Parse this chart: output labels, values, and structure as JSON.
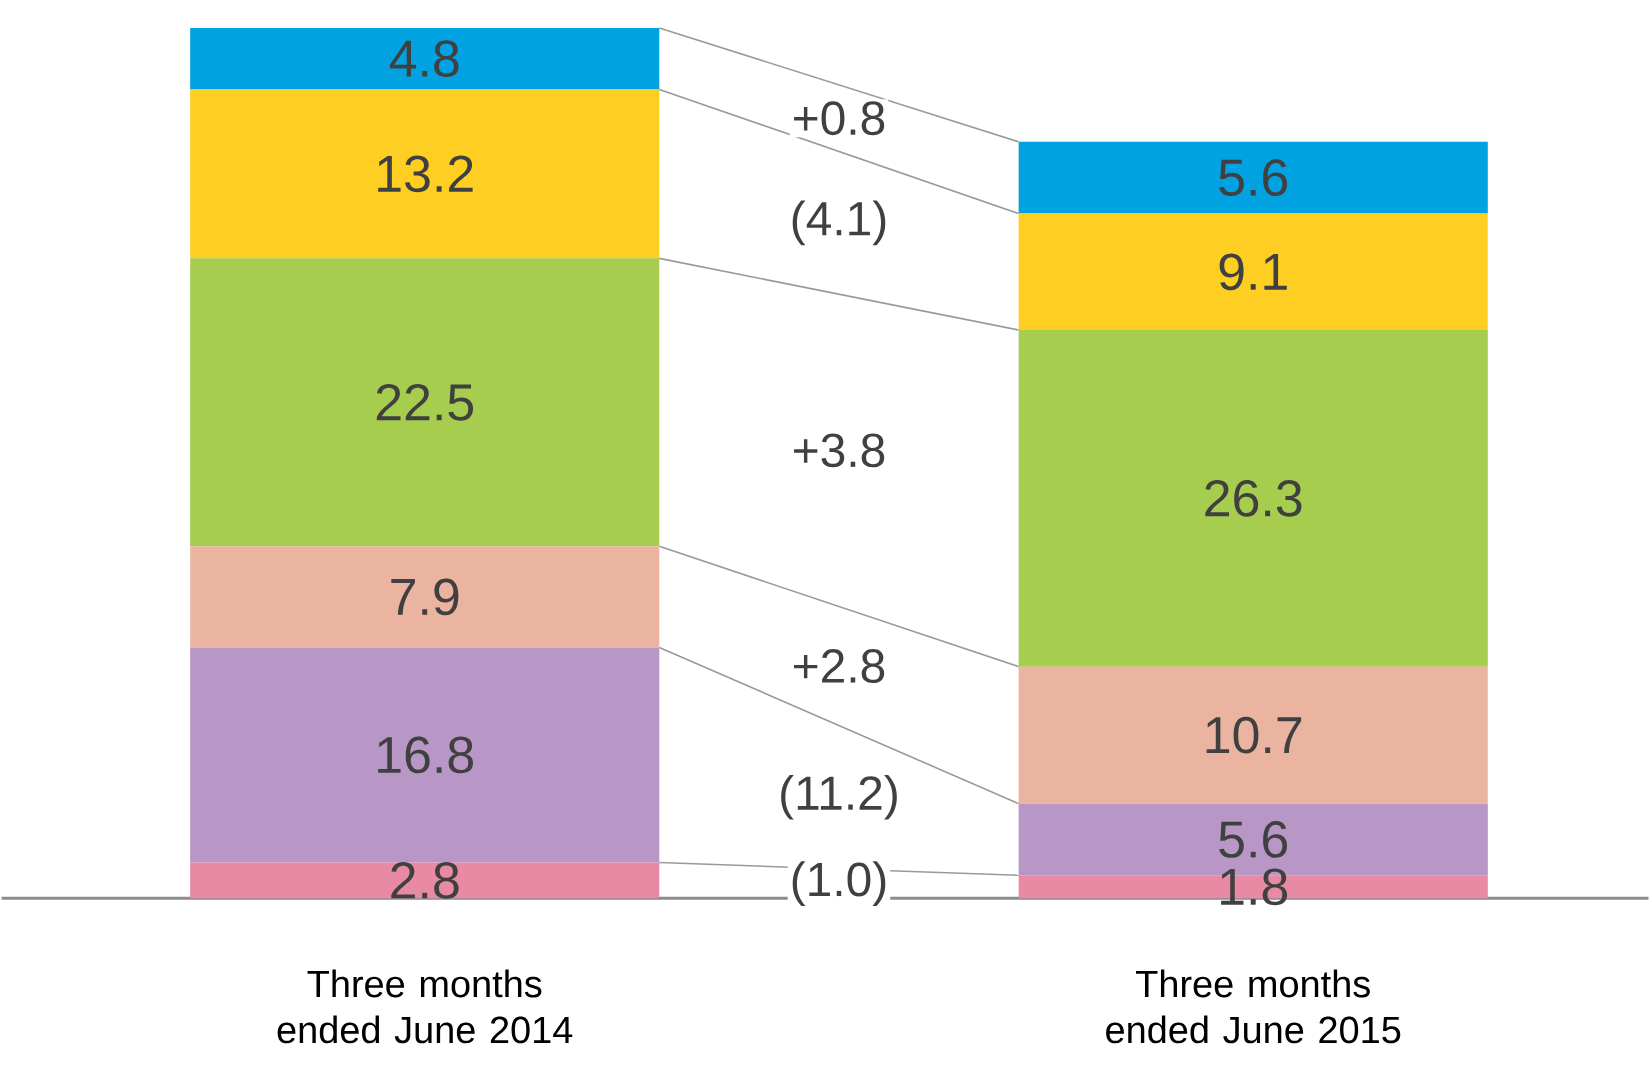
{
  "chart_data": {
    "type": "bar",
    "stacked": true,
    "data_labels": true,
    "categories": [
      "Three months ended June 2014",
      "Three months ended June 2015"
    ],
    "series": [
      {
        "color": "#e98aa4",
        "values": [
          2.8,
          1.8
        ]
      },
      {
        "color": "#b896c6",
        "values": [
          16.8,
          5.6
        ]
      },
      {
        "color": "#ebb4a0",
        "values": [
          7.9,
          10.7
        ]
      },
      {
        "color": "#a6cd4e",
        "values": [
          22.5,
          26.3
        ]
      },
      {
        "color": "#fecf22",
        "values": [
          13.2,
          9.1
        ]
      },
      {
        "color": "#00a2e2",
        "values": [
          4.8,
          5.6
        ]
      }
    ],
    "annotations": [
      "+0.8",
      "(4.1)",
      "+3.8",
      "+2.8",
      "(11.2)",
      "(1.0)"
    ]
  }
}
